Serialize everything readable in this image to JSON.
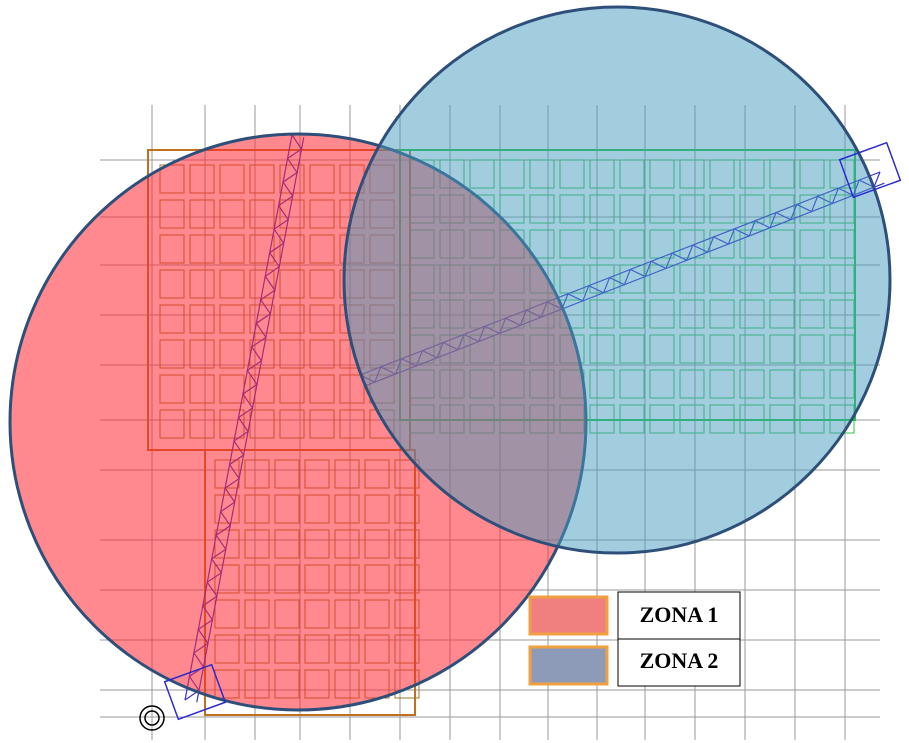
{
  "legend": {
    "items": [
      {
        "label": "ZONA 1"
      },
      {
        "label": "ZONA 2"
      }
    ]
  }
}
